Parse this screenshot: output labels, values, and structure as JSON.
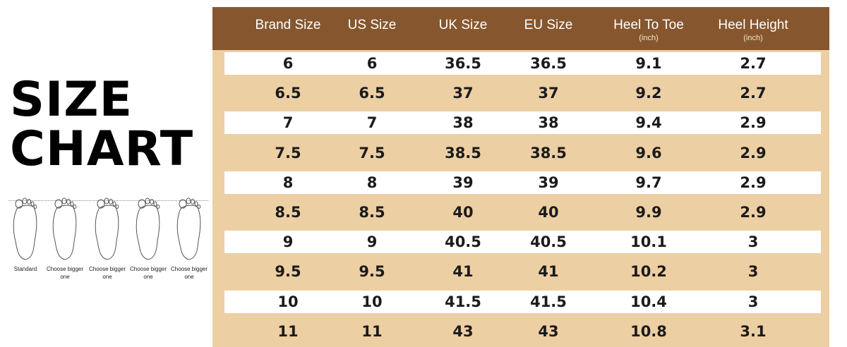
{
  "title": {
    "line1": "SIZE",
    "line2": "CHART"
  },
  "feet": [
    {
      "label": "Standard"
    },
    {
      "label": "Choose bigger one"
    },
    {
      "label": "Choose bigger one"
    },
    {
      "label": "Choose bigger one"
    },
    {
      "label": "Choose bigger one"
    }
  ],
  "table": {
    "header_bg": "#86572e",
    "body_bg": "#edcfa4",
    "columns": [
      {
        "label": "Brand Size",
        "unit": ""
      },
      {
        "label": "US Size",
        "unit": ""
      },
      {
        "label": "UK Size",
        "unit": ""
      },
      {
        "label": "EU Size",
        "unit": ""
      },
      {
        "label": "Heel To Toe",
        "unit": "(inch)"
      },
      {
        "label": "Heel Height",
        "unit": "(inch)"
      }
    ],
    "rows": [
      [
        "6",
        "6",
        "36.5",
        "36.5",
        "9.1",
        "2.7"
      ],
      [
        "6.5",
        "6.5",
        "37",
        "37",
        "9.2",
        "2.7"
      ],
      [
        "7",
        "7",
        "38",
        "38",
        "9.4",
        "2.9"
      ],
      [
        "7.5",
        "7.5",
        "38.5",
        "38.5",
        "9.6",
        "2.9"
      ],
      [
        "8",
        "8",
        "39",
        "39",
        "9.7",
        "2.9"
      ],
      [
        "8.5",
        "8.5",
        "40",
        "40",
        "9.9",
        "2.9"
      ],
      [
        "9",
        "9",
        "40.5",
        "40.5",
        "10.1",
        "3"
      ],
      [
        "9.5",
        "9.5",
        "41",
        "41",
        "10.2",
        "3"
      ],
      [
        "10",
        "10",
        "41.5",
        "41.5",
        "10.4",
        "3"
      ],
      [
        "11",
        "11",
        "43",
        "43",
        "10.8",
        "3.1"
      ]
    ]
  }
}
